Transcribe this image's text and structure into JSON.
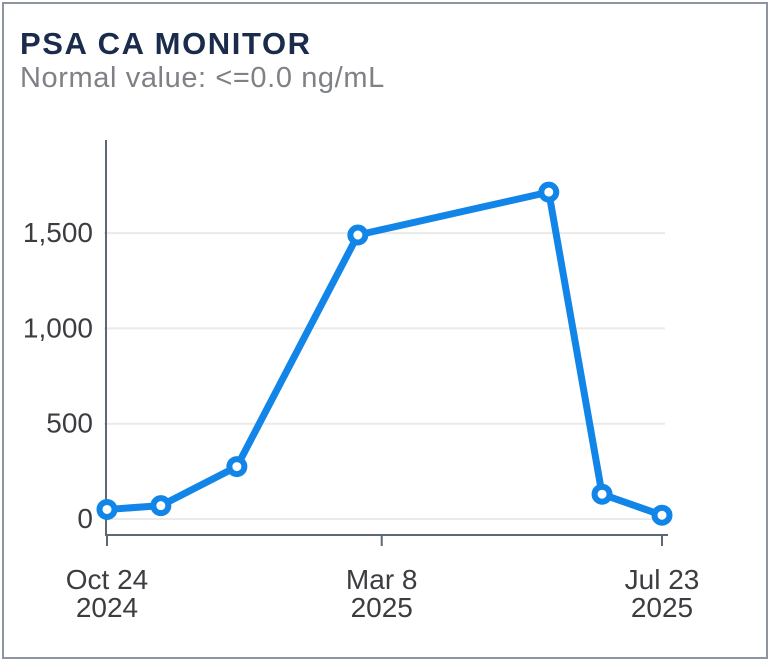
{
  "header": {
    "title": "PSA CA MONITOR",
    "subtitle": "Normal value: <=0.0 ng/mL"
  },
  "colors": {
    "line": "#1285E8",
    "marker_fill": "#FFFFFF",
    "title": "#1B2B4B",
    "subtitle": "#7E8185",
    "axis": "#5C6874",
    "grid": "#EAEAEA",
    "tick_label": "#3B3D40",
    "card_border": "#8F95A0",
    "background": "#FFFFFF"
  },
  "chart_data": {
    "type": "line",
    "title": "PSA CA MONITOR",
    "unit": "ng/mL",
    "grid": "horizontal",
    "legend": "none",
    "marker": "open-circle",
    "ylim": [
      0,
      2000
    ],
    "y_ticks": [
      0,
      500,
      1000,
      1500
    ],
    "y_tick_labels": [
      "0",
      "500",
      "1,000",
      "1,500"
    ],
    "x_axis_range": [
      "Oct 24 2024",
      "Jul 23 2025"
    ],
    "x_ticks": [
      {
        "frac": 0.0,
        "label_line1": "Oct 24",
        "label_line2": "2024"
      },
      {
        "frac": 0.495,
        "label_line1": "Mar 8",
        "label_line2": "2025"
      },
      {
        "frac": 1.0,
        "label_line1": "Jul 23",
        "label_line2": "2025"
      }
    ],
    "points": [
      {
        "x_frac": 0.0,
        "value": 50
      },
      {
        "x_frac": 0.097,
        "value": 70
      },
      {
        "x_frac": 0.234,
        "value": 275
      },
      {
        "x_frac": 0.452,
        "value": 1490
      },
      {
        "x_frac": 0.796,
        "value": 1715
      },
      {
        "x_frac": 0.892,
        "value": 130
      },
      {
        "x_frac": 1.0,
        "value": 20
      }
    ]
  }
}
